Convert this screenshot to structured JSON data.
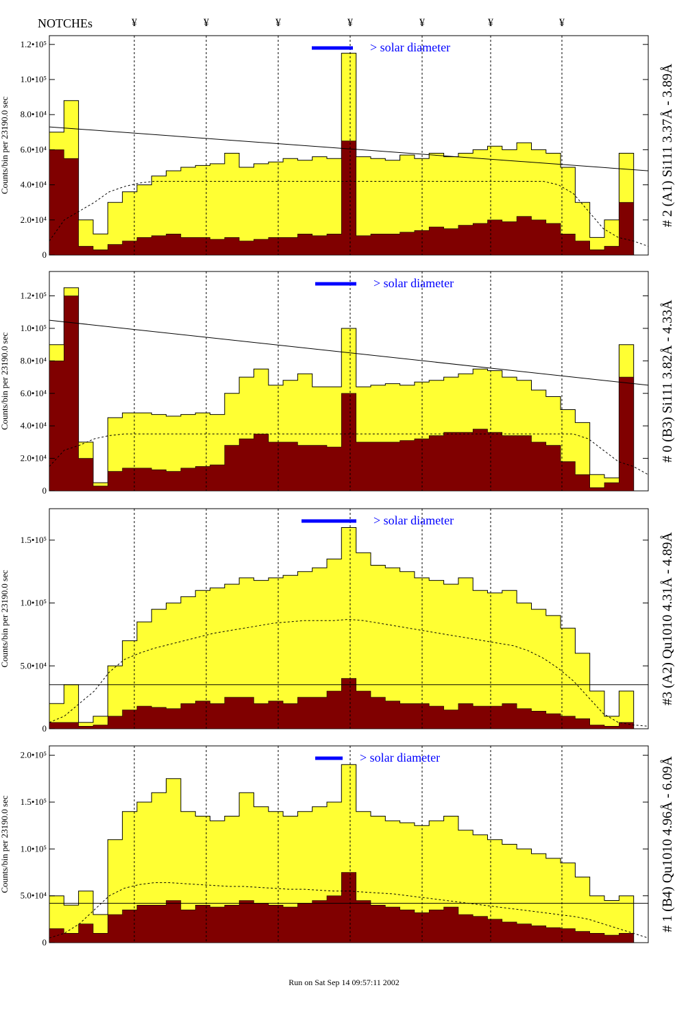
{
  "header": {
    "notches_label": "NOTCHEs",
    "notch_marker": "¥",
    "notch_positions": [
      196,
      301,
      406,
      511,
      616,
      716,
      820
    ]
  },
  "footer": {
    "run_label": "Run on Sat Sep 14 09:57:11 2002"
  },
  "colors": {
    "total": "#ffff33",
    "counts": "#800000",
    "bar_marker": "#0000ff",
    "solar_text": "#0000ff",
    "notch_line": "#000000"
  },
  "chart_data": [
    {
      "type": "area",
      "panel_label": "# 2 (A1) Si111 3.37Å - 3.89Å",
      "ylabel": "Counts/bin per 23190.0 sec",
      "annotation": "> solar diameter",
      "ylim": [
        0,
        125000
      ],
      "yticks": [
        {
          "v": 0,
          "label": "0"
        },
        {
          "v": 20000,
          "label": "2.0•10⁴"
        },
        {
          "v": 40000,
          "label": "4.0•10⁴"
        },
        {
          "v": 60000,
          "label": "6.0•10⁴"
        },
        {
          "v": 80000,
          "label": "8.0•10⁴"
        },
        {
          "v": 100000,
          "label": "1.0•10⁵"
        },
        {
          "v": 120000,
          "label": "1.2•10⁵"
        }
      ],
      "series": [
        {
          "values": [
            70000,
            88000,
            20000,
            12000,
            30000,
            36000,
            40000,
            45000,
            48000,
            50000,
            51000,
            52000,
            58000,
            50000,
            52000,
            53000,
            55000,
            54000,
            56000,
            55000,
            115000,
            56000,
            55000,
            54000,
            57000,
            55000,
            58000,
            56000,
            58000,
            60000,
            62000,
            60000,
            64000,
            60000,
            58000,
            50000,
            30000,
            10000,
            20000,
            58000,
            0
          ]
        },
        {
          "values": [
            60000,
            55000,
            5000,
            3000,
            6000,
            8000,
            10000,
            11000,
            12000,
            10000,
            10000,
            9000,
            10000,
            8000,
            9000,
            10000,
            10000,
            12000,
            11000,
            12000,
            65000,
            11000,
            12000,
            12000,
            13000,
            14000,
            16000,
            15000,
            17000,
            18000,
            20000,
            19000,
            22000,
            20000,
            18000,
            12000,
            8000,
            3000,
            5000,
            30000,
            0
          ]
        },
        {
          "values": [
            8000,
            20000,
            25000,
            30000,
            36000,
            39000,
            41000,
            42000,
            42000,
            42000,
            42000,
            42000,
            42000,
            42000,
            42000,
            42000,
            42000,
            42000,
            42000,
            42000,
            42000,
            42000,
            42000,
            42000,
            42000,
            42000,
            42000,
            42000,
            42000,
            42000,
            42000,
            42000,
            42000,
            42000,
            40000,
            35000,
            25000,
            15000,
            10000,
            8000,
            5000
          ]
        }
      ],
      "trend": [
        73000,
        48000
      ],
      "solar_bar": [
        455,
        515
      ]
    },
    {
      "type": "area",
      "panel_label": "# 0 (B3) Si111 3.82Å - 4.33Å",
      "ylabel": "Counts/bin per 23190.0 sec",
      "annotation": "> solar diameter",
      "ylim": [
        0,
        135000
      ],
      "yticks": [
        {
          "v": 0,
          "label": "0"
        },
        {
          "v": 20000,
          "label": "2.0•10⁴"
        },
        {
          "v": 40000,
          "label": "4.0•10⁴"
        },
        {
          "v": 60000,
          "label": "6.0•10⁴"
        },
        {
          "v": 80000,
          "label": "8.0•10⁴"
        },
        {
          "v": 100000,
          "label": "1.0•10⁵"
        },
        {
          "v": 120000,
          "label": "1.2•10⁵"
        }
      ],
      "series": [
        {
          "values": [
            90000,
            125000,
            30000,
            5000,
            45000,
            48000,
            48000,
            47000,
            46000,
            47000,
            48000,
            47000,
            60000,
            70000,
            75000,
            65000,
            68000,
            72000,
            64000,
            64000,
            100000,
            64000,
            65000,
            66000,
            65000,
            67000,
            68000,
            70000,
            72000,
            75000,
            74000,
            70000,
            68000,
            62000,
            58000,
            50000,
            42000,
            10000,
            8000,
            90000,
            0
          ]
        },
        {
          "values": [
            80000,
            120000,
            20000,
            3000,
            12000,
            14000,
            14000,
            13000,
            12000,
            14000,
            15000,
            16000,
            28000,
            32000,
            35000,
            30000,
            30000,
            28000,
            28000,
            27000,
            60000,
            30000,
            30000,
            30000,
            31000,
            32000,
            34000,
            36000,
            36000,
            38000,
            36000,
            34000,
            34000,
            30000,
            28000,
            18000,
            10000,
            2000,
            5000,
            70000,
            0
          ]
        },
        {
          "values": [
            15000,
            25000,
            28000,
            32000,
            34000,
            35000,
            35000,
            35000,
            35000,
            35000,
            35000,
            35000,
            35000,
            35000,
            35000,
            35000,
            35000,
            35000,
            35000,
            35000,
            35000,
            35000,
            35000,
            35000,
            35000,
            35000,
            35000,
            35000,
            35000,
            35000,
            35000,
            35000,
            35000,
            35000,
            35000,
            35000,
            32000,
            25000,
            18000,
            15000,
            10000
          ]
        }
      ],
      "trend": [
        105000,
        65000
      ],
      "solar_bar": [
        460,
        520
      ]
    },
    {
      "type": "area",
      "panel_label": "#3 (A2) Qu1010 4.31Å - 4.89Å",
      "ylabel": "Counts/bin per 23190.0 sec",
      "annotation": "> solar diameter",
      "ylim": [
        0,
        175000
      ],
      "yticks": [
        {
          "v": 0,
          "label": "0"
        },
        {
          "v": 50000,
          "label": "5.0•10⁴"
        },
        {
          "v": 100000,
          "label": "1.0•10⁵"
        },
        {
          "v": 150000,
          "label": "1.5•10⁵"
        }
      ],
      "series": [
        {
          "values": [
            20000,
            35000,
            5000,
            10000,
            50000,
            70000,
            85000,
            95000,
            100000,
            105000,
            110000,
            112000,
            115000,
            120000,
            118000,
            120000,
            122000,
            125000,
            128000,
            135000,
            160000,
            140000,
            130000,
            128000,
            125000,
            120000,
            118000,
            115000,
            120000,
            110000,
            108000,
            110000,
            100000,
            95000,
            90000,
            80000,
            60000,
            30000,
            10000,
            30000,
            0
          ]
        },
        {
          "values": [
            5000,
            5000,
            2000,
            3000,
            10000,
            15000,
            18000,
            17000,
            16000,
            20000,
            22000,
            20000,
            25000,
            25000,
            20000,
            22000,
            20000,
            25000,
            25000,
            30000,
            40000,
            30000,
            25000,
            22000,
            20000,
            20000,
            18000,
            15000,
            20000,
            18000,
            18000,
            20000,
            16000,
            14000,
            12000,
            10000,
            8000,
            3000,
            2000,
            5000,
            0
          ]
        },
        {
          "values": [
            5000,
            10000,
            20000,
            30000,
            45000,
            55000,
            60000,
            64000,
            67000,
            70000,
            73000,
            76000,
            78000,
            80000,
            82000,
            84000,
            85000,
            86000,
            86000,
            86000,
            87000,
            86000,
            84000,
            82000,
            80000,
            78000,
            76000,
            74000,
            72000,
            70000,
            68000,
            66000,
            62000,
            56000,
            48000,
            38000,
            25000,
            12000,
            5000,
            3000,
            2000
          ]
        }
      ],
      "trend": [
        35000,
        35000
      ],
      "solar_bar": [
        440,
        520
      ]
    },
    {
      "type": "area",
      "panel_label": "# 1 (B4) Qu1010 4.96Å - 6.09Å",
      "ylabel": "Counts/bin per 23190.0 sec",
      "annotation": "> solar diameter",
      "ylim": [
        0,
        210000
      ],
      "yticks": [
        {
          "v": 0,
          "label": "0"
        },
        {
          "v": 50000,
          "label": "5.0•10⁴"
        },
        {
          "v": 100000,
          "label": "1.0•10⁵"
        },
        {
          "v": 150000,
          "label": "1.5•10⁵"
        },
        {
          "v": 200000,
          "label": "2.0•10⁵"
        }
      ],
      "series": [
        {
          "values": [
            50000,
            40000,
            55000,
            30000,
            110000,
            140000,
            150000,
            160000,
            175000,
            140000,
            135000,
            130000,
            135000,
            160000,
            145000,
            140000,
            135000,
            140000,
            145000,
            150000,
            190000,
            140000,
            135000,
            130000,
            128000,
            125000,
            130000,
            135000,
            120000,
            115000,
            110000,
            105000,
            100000,
            95000,
            90000,
            85000,
            70000,
            50000,
            45000,
            50000,
            0
          ]
        },
        {
          "values": [
            15000,
            10000,
            20000,
            10000,
            30000,
            35000,
            40000,
            40000,
            45000,
            35000,
            40000,
            38000,
            40000,
            45000,
            42000,
            40000,
            38000,
            42000,
            45000,
            50000,
            75000,
            45000,
            40000,
            38000,
            35000,
            32000,
            35000,
            38000,
            30000,
            28000,
            25000,
            22000,
            20000,
            18000,
            16000,
            15000,
            12000,
            10000,
            8000,
            10000,
            0
          ]
        },
        {
          "values": [
            5000,
            10000,
            20000,
            35000,
            50000,
            58000,
            62000,
            64000,
            64000,
            63000,
            62000,
            61000,
            60000,
            60000,
            59000,
            58000,
            57000,
            57000,
            56000,
            55000,
            55000,
            54000,
            53000,
            52000,
            50000,
            48000,
            46000,
            44000,
            42000,
            40000,
            38000,
            36000,
            34000,
            32000,
            30000,
            28000,
            25000,
            20000,
            15000,
            10000,
            5000
          ]
        }
      ],
      "trend": [
        42000,
        42000
      ],
      "solar_bar": [
        460,
        500
      ]
    }
  ]
}
